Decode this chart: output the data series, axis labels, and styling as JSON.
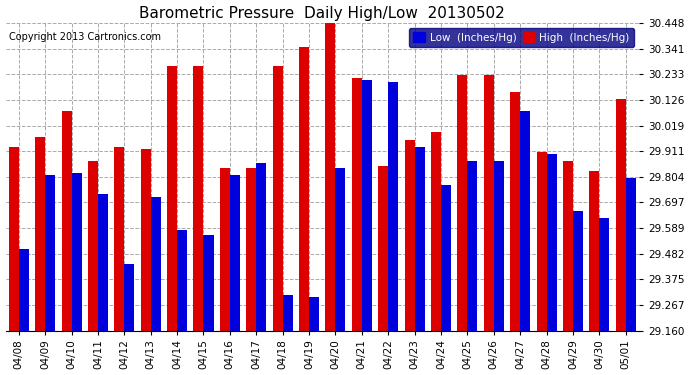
{
  "title": "Barometric Pressure  Daily High/Low  20130502",
  "copyright": "Copyright 2013 Cartronics.com",
  "legend": [
    {
      "label": "Low  (Inches/Hg)",
      "color": "#0000dd"
    },
    {
      "label": "High  (Inches/Hg)",
      "color": "#dd0000"
    }
  ],
  "categories": [
    "04/08",
    "04/09",
    "04/10",
    "04/11",
    "04/12",
    "04/13",
    "04/14",
    "04/15",
    "04/16",
    "04/17",
    "04/18",
    "04/19",
    "04/20",
    "04/21",
    "04/22",
    "04/23",
    "04/24",
    "04/25",
    "04/26",
    "04/27",
    "04/28",
    "04/29",
    "04/30",
    "05/01"
  ],
  "high_values": [
    29.93,
    29.97,
    30.08,
    29.87,
    29.93,
    29.92,
    30.27,
    30.27,
    29.84,
    29.84,
    30.27,
    30.35,
    30.46,
    30.22,
    29.85,
    29.96,
    29.99,
    30.23,
    30.23,
    30.16,
    29.91,
    29.87,
    29.83,
    30.13
  ],
  "low_values": [
    29.5,
    29.81,
    29.82,
    29.73,
    29.44,
    29.72,
    29.58,
    29.56,
    29.81,
    29.86,
    29.31,
    29.3,
    29.84,
    30.21,
    30.2,
    29.93,
    29.77,
    29.87,
    29.87,
    30.08,
    29.9,
    29.66,
    29.63,
    29.8
  ],
  "ylim_min": 29.16,
  "ylim_max": 30.448,
  "yticks": [
    29.16,
    29.267,
    29.375,
    29.482,
    29.589,
    29.697,
    29.804,
    29.911,
    30.019,
    30.126,
    30.233,
    30.341,
    30.448
  ],
  "bar_color_high": "#dd0000",
  "bar_color_low": "#0000dd",
  "background_color": "#ffffff",
  "grid_color": "#aaaaaa",
  "title_fontsize": 11,
  "copyright_fontsize": 7,
  "tick_fontsize": 7.5,
  "legend_fontsize": 7.5,
  "bar_width": 0.38
}
